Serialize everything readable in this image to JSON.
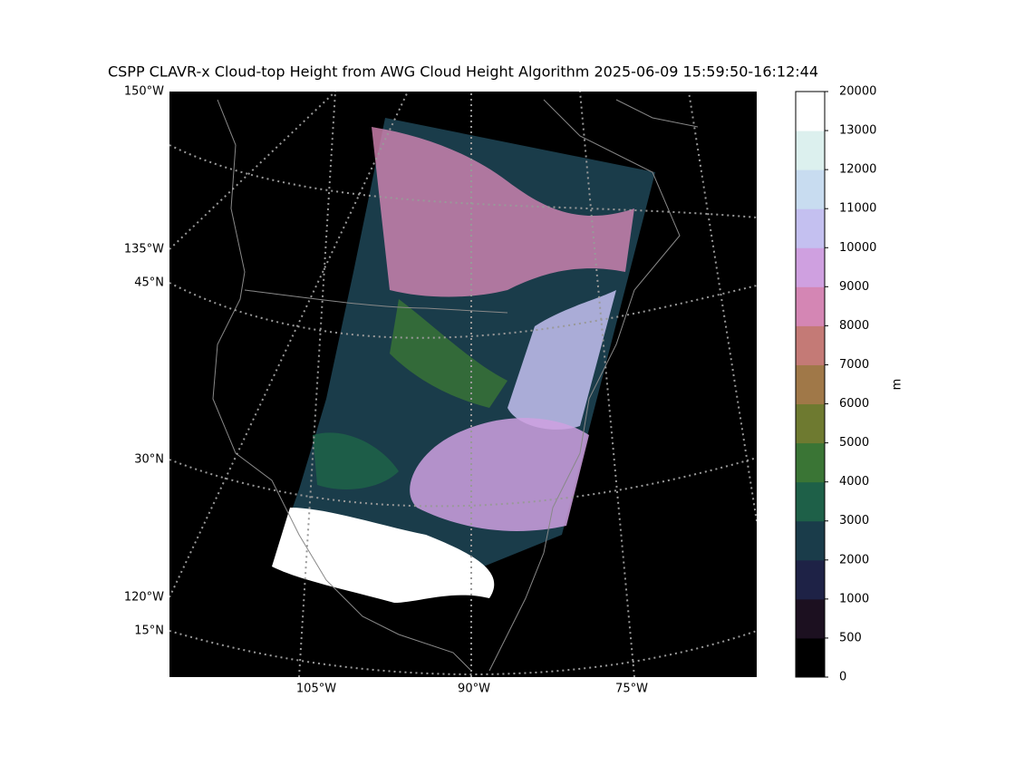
{
  "title": "CSPP CLAVR-x Cloud-top Height from AWG Cloud Height Algorithm 2025-06-09 15:59:50-16:12:44",
  "map": {
    "left_labels": [
      "150°W",
      "135°W",
      "45°N",
      "30°N",
      "120°W",
      "15°N"
    ],
    "bottom_labels": [
      "105°W",
      "90°W",
      "75°W"
    ]
  },
  "colorbar": {
    "label": "m",
    "ticks": [
      0,
      500,
      1000,
      2000,
      3000,
      4000,
      5000,
      6000,
      7000,
      8000,
      9000,
      10000,
      11000,
      12000,
      13000,
      20000
    ],
    "colors": [
      "#000000",
      "#1c1020",
      "#1e2246",
      "#1a3c4a",
      "#1e6048",
      "#3a7535",
      "#6e7a30",
      "#a07848",
      "#c47a76",
      "#d486b4",
      "#cfa0e0",
      "#c4c0f0",
      "#c8dcf0",
      "#dcf0ee",
      "#ffffff"
    ]
  }
}
